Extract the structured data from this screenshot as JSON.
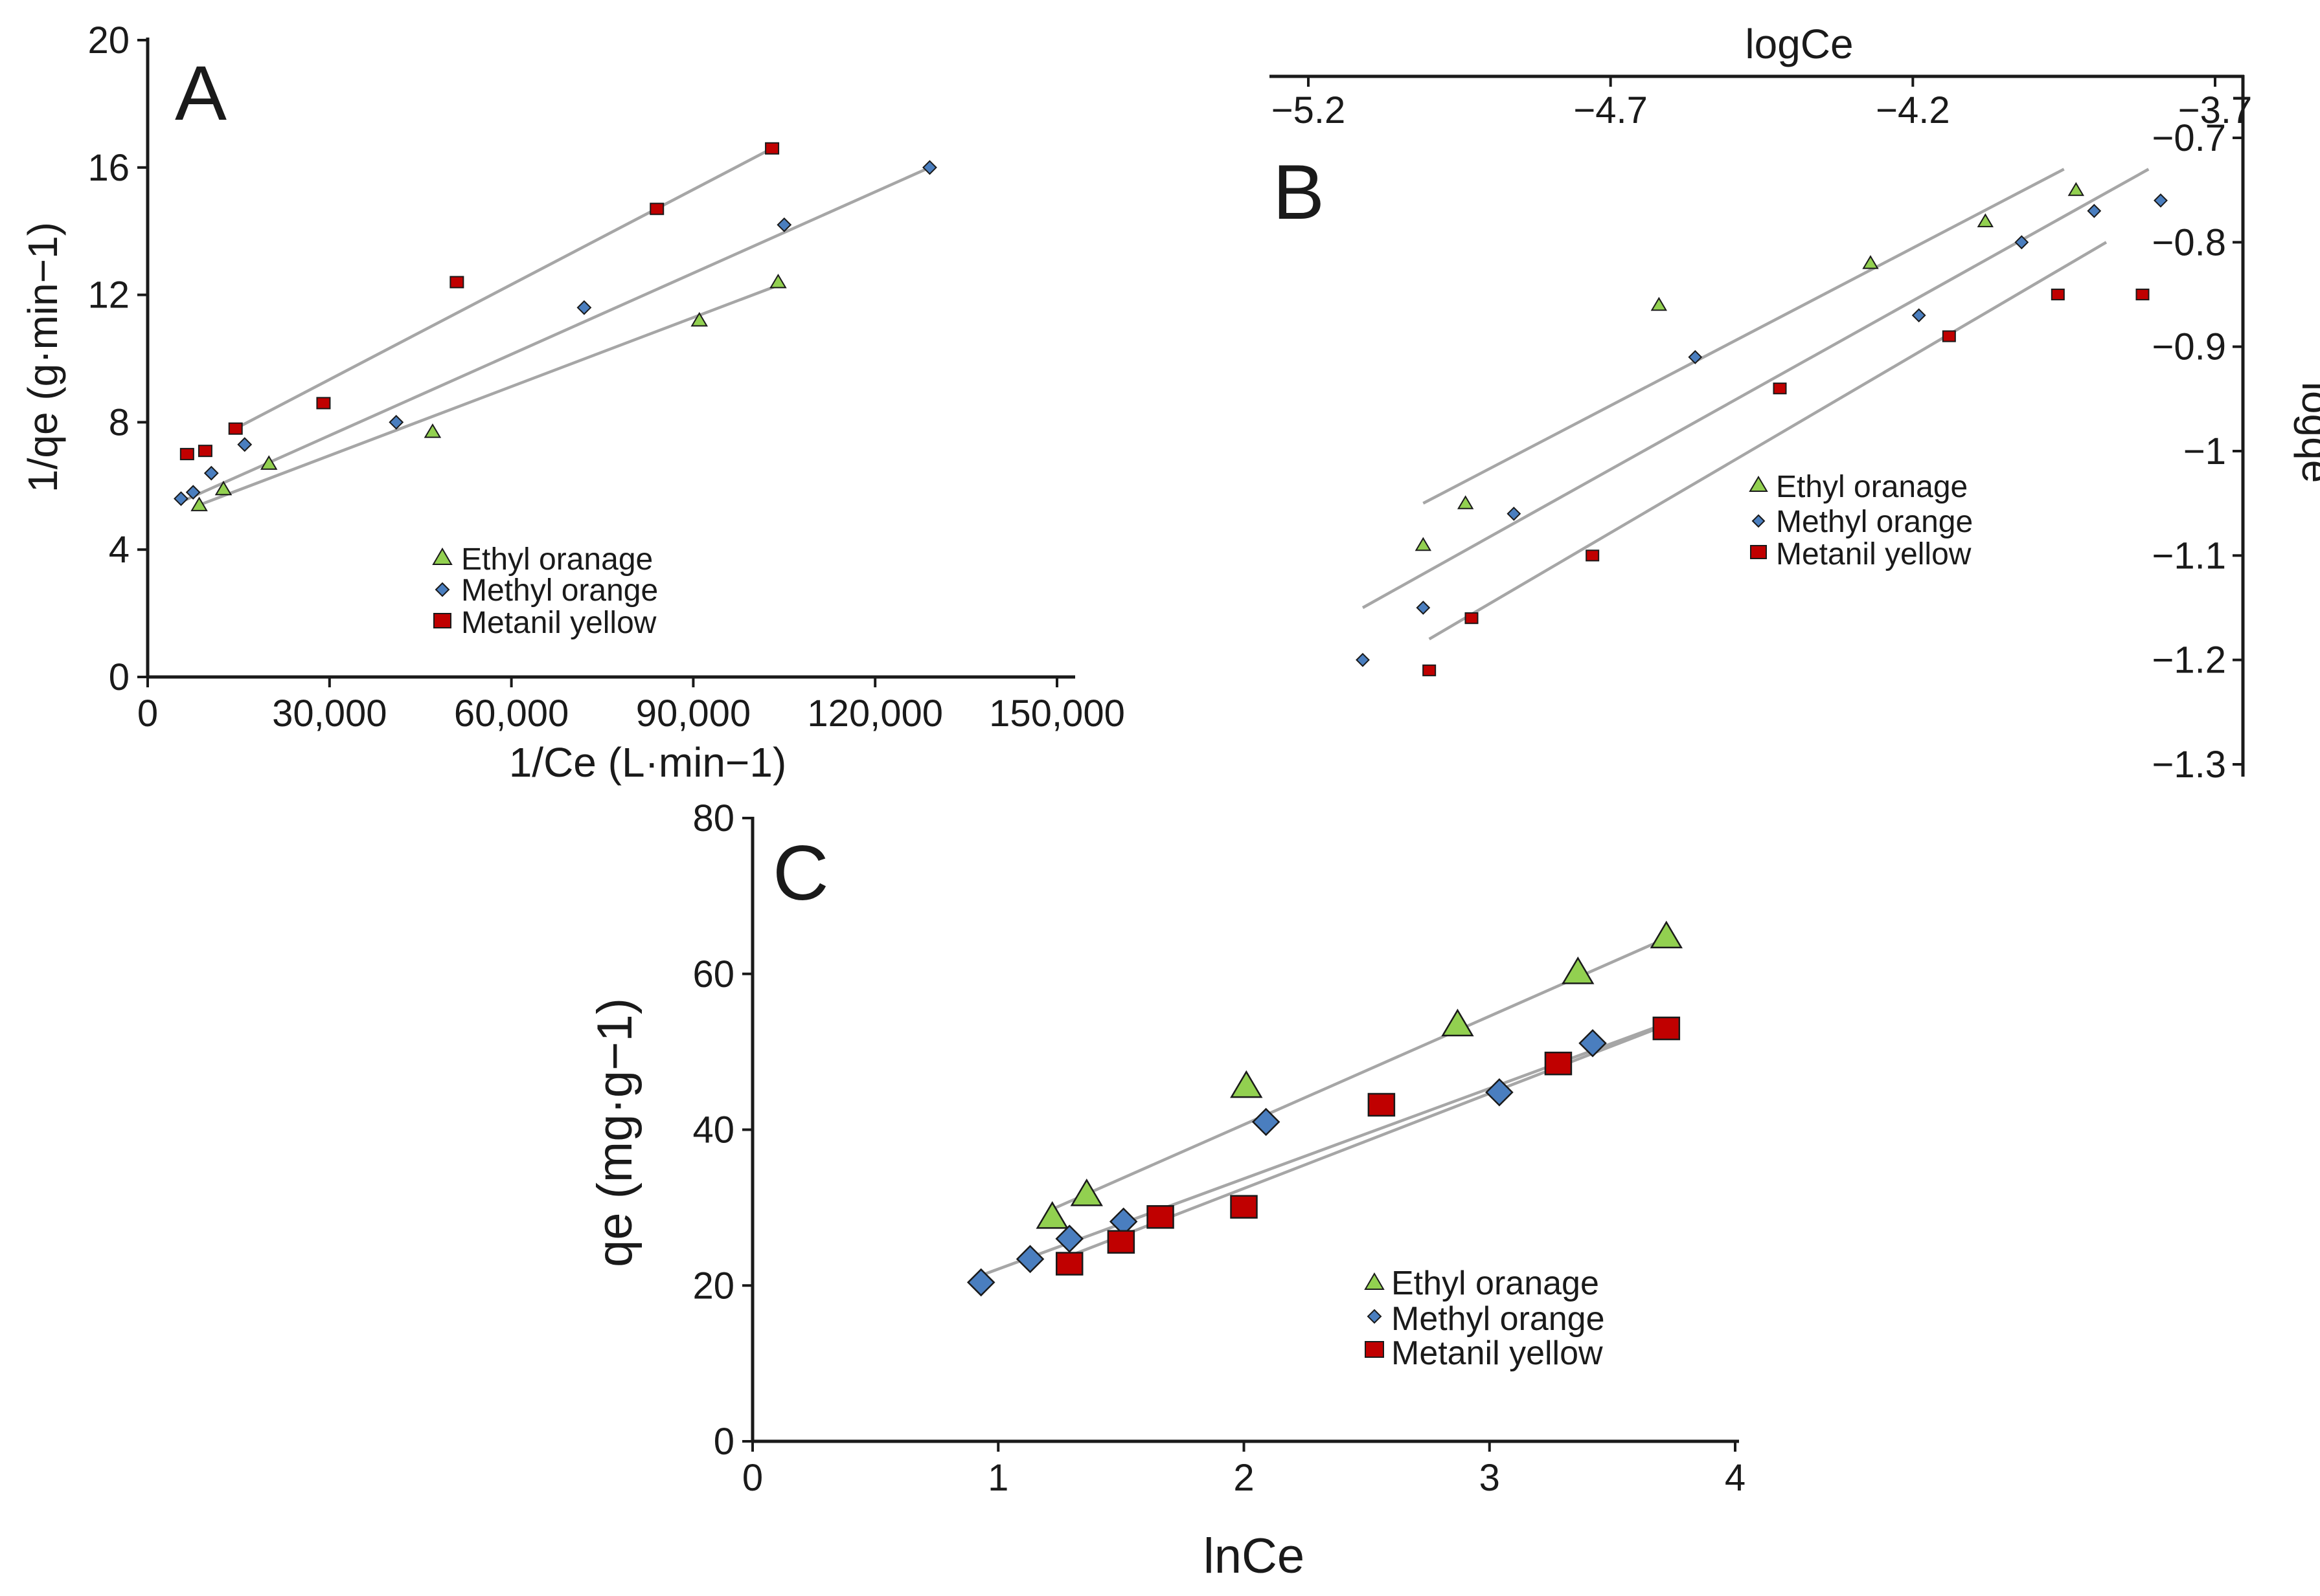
{
  "chart_data": [
    {
      "panel": "A",
      "type": "scatter",
      "xlabel": "1/Ce (L·min−1)",
      "ylabel": "1/qe (g·min−1)",
      "xlim": [
        0,
        150000
      ],
      "ylim": [
        0,
        20
      ],
      "xticks": [
        0,
        30000,
        60000,
        90000,
        120000,
        150000
      ],
      "xtick_labels": [
        "0",
        "30,000",
        "60,000",
        "90,000",
        "120,000",
        "150,000"
      ],
      "yticks": [
        0,
        4,
        8,
        12,
        16,
        20
      ],
      "ytick_labels": [
        "0",
        "4",
        "8",
        "12",
        "16",
        "20"
      ],
      "legend": [
        "Ethyl oranage",
        "Methyl orange",
        "Metanil yellow"
      ],
      "legend_position": "lower-center",
      "series": [
        {
          "name": "Ethyl oranage",
          "marker": "triangle",
          "color": "#92d050",
          "x": [
            8500,
            12500,
            20000,
            47000,
            91000,
            104000
          ],
          "y": [
            5.4,
            5.9,
            6.7,
            7.7,
            11.2,
            12.4
          ],
          "fit": {
            "x": [
              8500,
              104000
            ],
            "y": [
              5.4,
              12.3
            ]
          }
        },
        {
          "name": "Methyl orange",
          "marker": "diamond",
          "color": "#4a7ebf",
          "x": [
            5500,
            7500,
            10500,
            16000,
            41000,
            72000,
            105000,
            129000
          ],
          "y": [
            5.6,
            5.8,
            6.4,
            7.3,
            8.0,
            11.6,
            14.2,
            16.0
          ],
          "fit": {
            "x": [
              5500,
              129000
            ],
            "y": [
              5.5,
              16.0
            ]
          }
        },
        {
          "name": "Metanil yellow",
          "marker": "square",
          "color": "#c00000",
          "x": [
            6500,
            9500,
            14500,
            29000,
            51000,
            84000,
            103000
          ],
          "y": [
            7.0,
            7.1,
            7.8,
            8.6,
            12.4,
            14.7,
            16.6
          ],
          "fit": {
            "x": [
              14500,
              103000
            ],
            "y": [
              7.8,
              16.6
            ]
          }
        }
      ]
    },
    {
      "panel": "B",
      "type": "scatter",
      "xlabel": "logCe",
      "ylabel": "logqe",
      "xlim": [
        -5.2,
        -3.7
      ],
      "ylim": [
        -1.3,
        -0.7
      ],
      "xticks": [
        -5.2,
        -4.7,
        -4.2,
        -3.7
      ],
      "xtick_labels": [
        "−5.2",
        "−4.7",
        "−4.2",
        "−3.7"
      ],
      "yticks": [
        -0.7,
        -0.8,
        -0.9,
        -1.0,
        -1.1,
        -1.2,
        -1.3
      ],
      "ytick_labels": [
        "−0.7",
        "−0.8",
        "−0.9",
        "−1",
        "−1.1",
        "−1.2",
        "−1.3"
      ],
      "legend": [
        "Ethyl oranage",
        "Methyl orange",
        "Metanil yellow"
      ],
      "legend_position": "center-right",
      "series": [
        {
          "name": "Ethyl oranage",
          "marker": "triangle",
          "color": "#92d050",
          "x": [
            -5.01,
            -4.94,
            -4.62,
            -4.27,
            -4.08,
            -3.93
          ],
          "y": [
            -1.09,
            -1.05,
            -0.86,
            -0.82,
            -0.78,
            -0.75
          ],
          "fit": {
            "x": [
              -5.01,
              -3.95
            ],
            "y": [
              -1.05,
              -0.73
            ]
          }
        },
        {
          "name": "Methyl orange",
          "marker": "diamond",
          "color": "#4a7ebf",
          "x": [
            -5.11,
            -5.01,
            -4.86,
            -4.56,
            -4.19,
            -4.02,
            -3.9,
            -3.79
          ],
          "y": [
            -1.2,
            -1.15,
            -1.06,
            -0.91,
            -0.87,
            -0.8,
            -0.77,
            -0.76
          ],
          "fit": {
            "x": [
              -5.11,
              -3.81
            ],
            "y": [
              -1.15,
              -0.73
            ]
          }
        },
        {
          "name": "Metanil yellow",
          "marker": "square",
          "color": "#c00000",
          "x": [
            -5.0,
            -4.93,
            -4.73,
            -4.42,
            -4.14,
            -3.96,
            -3.82
          ],
          "y": [
            -1.21,
            -1.16,
            -1.1,
            -0.94,
            -0.89,
            -0.85,
            -0.85
          ],
          "fit": {
            "x": [
              -5.0,
              -3.88
            ],
            "y": [
              -1.18,
              -0.8
            ]
          }
        }
      ]
    },
    {
      "panel": "C",
      "type": "scatter",
      "xlabel": "lnCe",
      "ylabel": "qe (mg·g−1)",
      "xlim": [
        0,
        4
      ],
      "ylim": [
        0,
        80
      ],
      "xticks": [
        0,
        1,
        2,
        3,
        4
      ],
      "xtick_labels": [
        "0",
        "1",
        "2",
        "3",
        "4"
      ],
      "yticks": [
        0,
        20,
        40,
        60,
        80
      ],
      "ytick_labels": [
        "0",
        "20",
        "40",
        "60",
        "80"
      ],
      "legend": [
        "Ethyl oranage",
        "Methyl orange",
        "Metanil yellow"
      ],
      "legend_position": "lower-right",
      "series": [
        {
          "name": "Ethyl oranage",
          "marker": "triangle",
          "color": "#92d050",
          "x": [
            1.22,
            1.36,
            2.01,
            2.87,
            3.36,
            3.72
          ],
          "y": [
            28.8,
            31.7,
            45.6,
            53.5,
            60.2,
            64.8
          ],
          "fit": {
            "x": [
              1.22,
              3.75
            ],
            "y": [
              29.8,
              65.0
            ]
          }
        },
        {
          "name": "Methyl orange",
          "marker": "diamond",
          "color": "#4a7ebf",
          "x": [
            0.93,
            1.13,
            1.29,
            1.51,
            2.09,
            3.04,
            3.42
          ],
          "y": [
            20.4,
            23.4,
            26.0,
            28.2,
            41.0,
            44.8,
            51.1
          ],
          "fit": {
            "x": [
              0.93,
              3.75
            ],
            "y": [
              21.3,
              54.0
            ]
          }
        },
        {
          "name": "Metanil yellow",
          "marker": "square",
          "color": "#c00000",
          "x": [
            1.29,
            1.5,
            1.66,
            2.0,
            2.56,
            3.28,
            3.72
          ],
          "y": [
            22.8,
            25.6,
            28.8,
            30.1,
            43.2,
            48.5,
            53.0
          ],
          "fit": {
            "x": [
              1.29,
              3.75
            ],
            "y": [
              23.8,
              53.8
            ]
          }
        }
      ]
    }
  ]
}
